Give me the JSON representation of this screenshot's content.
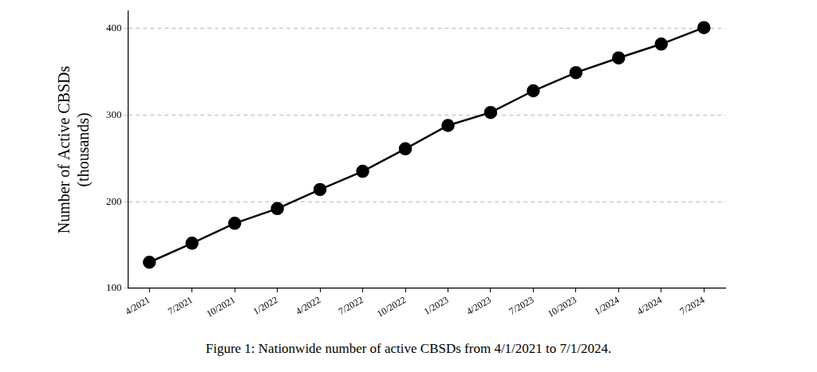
{
  "chart_data": {
    "type": "line",
    "title": "Figure 1: Nationwide number of active CBSDs from 4/1/2021 to 7/1/2024.",
    "y_label": [
      "Number of Active CBSDs",
      "(thousands)"
    ],
    "categories": [
      "4/2021",
      "7/2021",
      "10/2021",
      "1/2022",
      "4/2022",
      "7/2022",
      "10/2022",
      "1/2023",
      "4/2023",
      "7/2023",
      "10/2023",
      "1/2024",
      "4/2024",
      "7/2024"
    ],
    "values": [
      130,
      152,
      175,
      192,
      214,
      235,
      261,
      288,
      303,
      328,
      349,
      366,
      382,
      401
    ],
    "color": "#000000",
    "marker": "circle",
    "line_style": "solid",
    "ylim": [
      100,
      420
    ],
    "yticks": [
      100,
      200,
      300,
      400
    ],
    "grid": true
  }
}
